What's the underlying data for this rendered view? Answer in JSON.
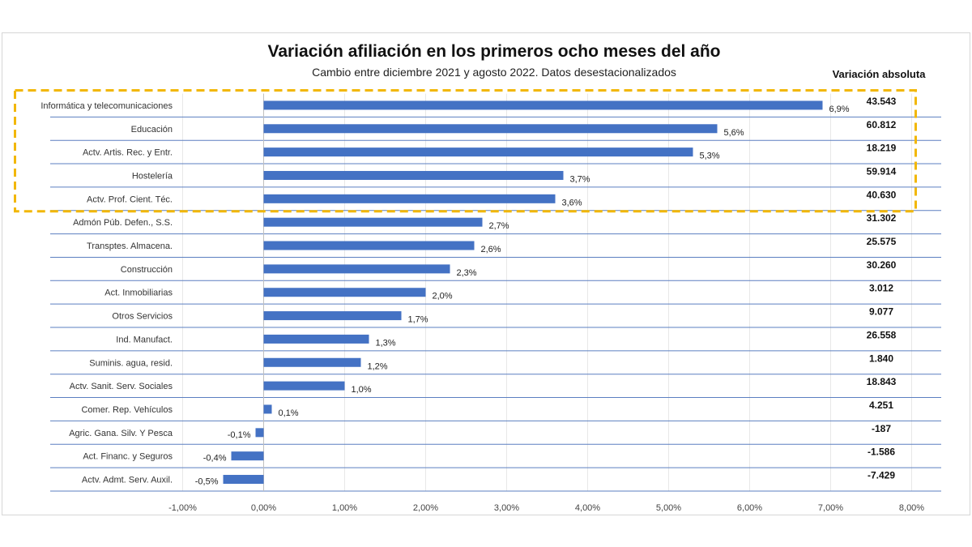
{
  "title": "Variación afiliación en los primeros ocho meses del año",
  "subtitle": "Cambio entre diciembre 2021 y agosto 2022. Datos desestacionalizados",
  "abs_header": "Variación absoluta",
  "colors": {
    "bar": "#4472c4",
    "highlight": "#f2b705",
    "separator": "#5b7fc0",
    "grid": "#e8e8e8"
  },
  "chart_data": {
    "type": "bar",
    "orientation": "horizontal",
    "xlim": [
      -1,
      8
    ],
    "x_ticks": [
      "-1,00%",
      "0,00%",
      "1,00%",
      "2,00%",
      "3,00%",
      "4,00%",
      "5,00%",
      "6,00%",
      "7,00%",
      "8,00%"
    ],
    "x_tick_values": [
      -1,
      0,
      1,
      2,
      3,
      4,
      5,
      6,
      7,
      8
    ],
    "grid": "vertical",
    "highlight_top": 5,
    "categories": [
      "Informática y telecomunicaciones",
      "Educación",
      "Actv. Artis. Rec. y Entr.",
      "Hostelería",
      "Actv. Prof. Cient. Téc.",
      "Admón Púb. Defen., S.S.",
      "Transptes. Almacena.",
      "Construcción",
      "Act. Inmobiliarias",
      "Otros Servicios",
      "Ind. Manufact.",
      "Suminis. agua, resid.",
      "Actv. Sanit. Serv. Sociales",
      "Comer. Rep. Vehículos",
      "Agric. Gana. Silv. Y Pesca",
      "Act. Financ. y Seguros",
      "Actv. Admt. Serv. Auxil."
    ],
    "values": [
      6.9,
      5.6,
      5.3,
      3.7,
      3.6,
      2.7,
      2.6,
      2.3,
      2.0,
      1.7,
      1.3,
      1.2,
      1.0,
      0.1,
      -0.1,
      -0.4,
      -0.5
    ],
    "value_labels": [
      "6,9%",
      "5,6%",
      "5,3%",
      "3,7%",
      "3,6%",
      "2,7%",
      "2,6%",
      "2,3%",
      "2,0%",
      "1,7%",
      "1,3%",
      "1,2%",
      "1,0%",
      "0,1%",
      "-0,1%",
      "-0,4%",
      "-0,5%"
    ],
    "absolute": [
      "43.543",
      "60.812",
      "18.219",
      "59.914",
      "40.630",
      "31.302",
      "25.575",
      "30.260",
      "3.012",
      "9.077",
      "26.558",
      "1.840",
      "18.843",
      "4.251",
      "-187",
      "-1.586",
      "-7.429"
    ]
  }
}
